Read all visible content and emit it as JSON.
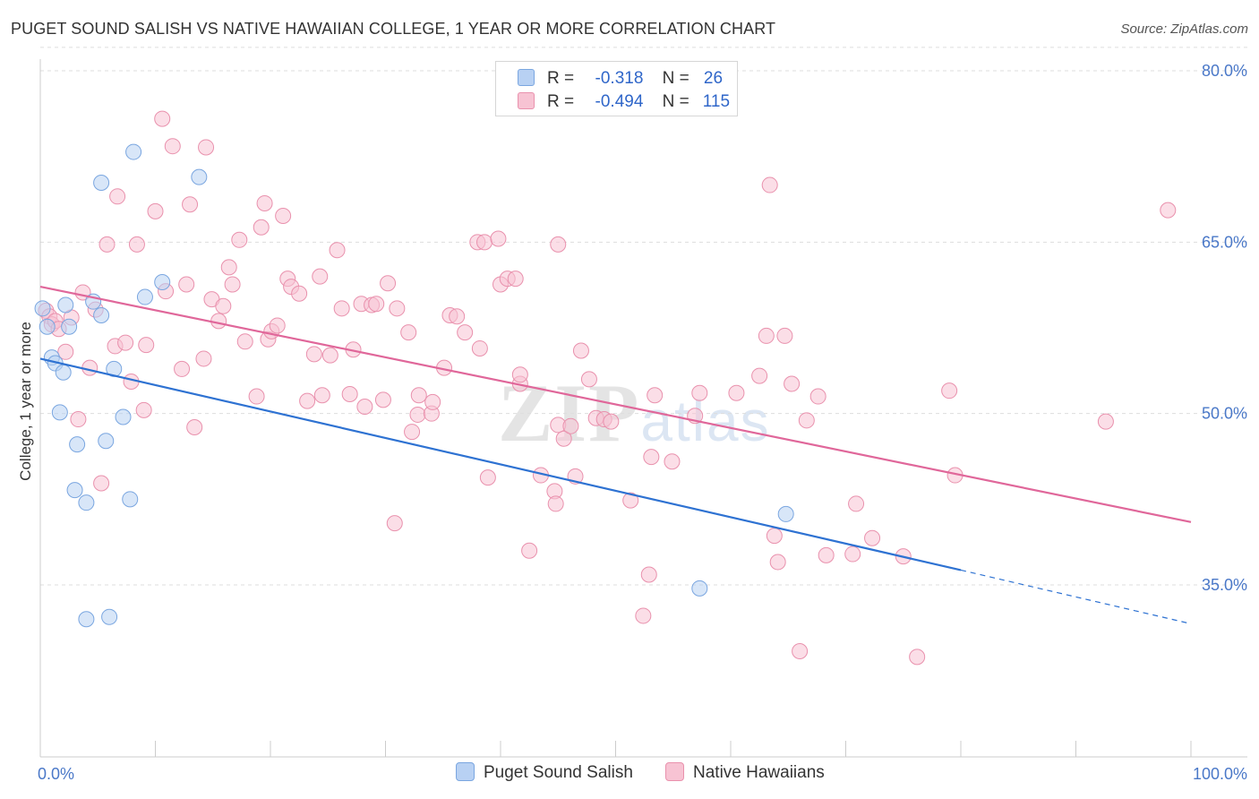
{
  "title": "PUGET SOUND SALISH VS NATIVE HAWAIIAN COLLEGE, 1 YEAR OR MORE CORRELATION CHART",
  "source": "Source: ZipAtlas.com",
  "watermark": "ZIPatlas",
  "colors": {
    "blue_fill": "#b8d1f3",
    "blue_stroke": "#7aa6e0",
    "blue_line": "#2e72d2",
    "pink_fill": "#f7c3d3",
    "pink_stroke": "#e991ad",
    "pink_line": "#e0679a",
    "grid": "#dddddd",
    "axis_text": "#4a78c8"
  },
  "legend": {
    "r_label": "R =",
    "n_label": "N =",
    "rows": [
      {
        "series": "Puget Sound Salish",
        "r": "-0.318",
        "n": "26"
      },
      {
        "series": "Native Hawaiians",
        "r": "-0.494",
        "n": "115"
      }
    ]
  },
  "chart_data": {
    "type": "scatter",
    "title": "PUGET SOUND SALISH VS NATIVE HAWAIIAN COLLEGE, 1 YEAR OR MORE CORRELATION CHART",
    "xlabel": "",
    "ylabel": "College, 1 year or more",
    "xlim": [
      0,
      100
    ],
    "ylim": [
      20,
      83
    ],
    "x_tick_labels": [
      "0.0%",
      "100.0%"
    ],
    "y_ticks": [
      35,
      50,
      65,
      80
    ],
    "y_tick_labels": [
      "35.0%",
      "50.0%",
      "65.0%",
      "80.0%"
    ],
    "grid": true,
    "legend_position": "bottom-center",
    "series": [
      {
        "name": "Puget Sound Salish",
        "color": "blue",
        "trend": {
          "x": [
            0,
            80
          ],
          "y": [
            54.8,
            36.3
          ],
          "dashed_to": [
            100,
            31.6
          ]
        },
        "points": [
          [
            0.2,
            59.2
          ],
          [
            0.6,
            57.6
          ],
          [
            1.0,
            54.9
          ],
          [
            1.3,
            54.4
          ],
          [
            1.7,
            50.1
          ],
          [
            2.0,
            53.6
          ],
          [
            2.2,
            59.5
          ],
          [
            2.5,
            57.6
          ],
          [
            3.0,
            43.3
          ],
          [
            3.2,
            47.3
          ],
          [
            4.0,
            42.2
          ],
          [
            4.0,
            32.0
          ],
          [
            5.3,
            58.6
          ],
          [
            5.3,
            70.2
          ],
          [
            5.7,
            47.6
          ],
          [
            6.0,
            32.2
          ],
          [
            6.4,
            53.9
          ],
          [
            4.6,
            59.8
          ],
          [
            7.2,
            49.7
          ],
          [
            7.8,
            42.5
          ],
          [
            8.1,
            72.9
          ],
          [
            9.1,
            60.2
          ],
          [
            10.6,
            61.5
          ],
          [
            13.8,
            70.7
          ],
          [
            57.3,
            34.7
          ],
          [
            64.8,
            41.2
          ]
        ]
      },
      {
        "name": "Native Hawaiians",
        "color": "pink",
        "trend": {
          "x": [
            0,
            100
          ],
          "y": [
            61.1,
            40.5
          ]
        },
        "points": [
          [
            0.5,
            59.0
          ],
          [
            0.8,
            58.5
          ],
          [
            1.0,
            57.8
          ],
          [
            1.3,
            58.1
          ],
          [
            1.6,
            57.4
          ],
          [
            2.2,
            55.4
          ],
          [
            2.7,
            58.4
          ],
          [
            3.3,
            49.5
          ],
          [
            3.7,
            60.6
          ],
          [
            4.3,
            54.0
          ],
          [
            4.8,
            59.1
          ],
          [
            5.3,
            43.9
          ],
          [
            5.8,
            64.8
          ],
          [
            6.5,
            55.9
          ],
          [
            6.7,
            69.0
          ],
          [
            7.4,
            56.2
          ],
          [
            7.9,
            52.8
          ],
          [
            8.4,
            64.8
          ],
          [
            9.0,
            50.3
          ],
          [
            9.2,
            56.0
          ],
          [
            10.0,
            67.7
          ],
          [
            10.6,
            75.8
          ],
          [
            10.9,
            60.7
          ],
          [
            11.5,
            73.4
          ],
          [
            12.3,
            53.9
          ],
          [
            12.7,
            61.3
          ],
          [
            13.0,
            68.3
          ],
          [
            13.4,
            48.8
          ],
          [
            14.2,
            54.8
          ],
          [
            14.4,
            73.3
          ],
          [
            14.9,
            60.0
          ],
          [
            15.5,
            58.1
          ],
          [
            15.9,
            59.4
          ],
          [
            16.4,
            62.8
          ],
          [
            16.7,
            61.3
          ],
          [
            17.3,
            65.2
          ],
          [
            17.8,
            56.3
          ],
          [
            18.8,
            51.5
          ],
          [
            19.2,
            66.3
          ],
          [
            19.5,
            68.4
          ],
          [
            19.8,
            56.5
          ],
          [
            20.1,
            57.2
          ],
          [
            20.6,
            57.7
          ],
          [
            21.1,
            67.3
          ],
          [
            21.5,
            61.8
          ],
          [
            21.8,
            61.1
          ],
          [
            22.5,
            60.5
          ],
          [
            23.2,
            51.1
          ],
          [
            23.8,
            55.2
          ],
          [
            24.3,
            62.0
          ],
          [
            24.5,
            51.6
          ],
          [
            25.2,
            55.1
          ],
          [
            25.8,
            64.3
          ],
          [
            26.2,
            59.2
          ],
          [
            26.9,
            51.7
          ],
          [
            27.2,
            55.6
          ],
          [
            27.9,
            59.6
          ],
          [
            28.2,
            50.6
          ],
          [
            28.8,
            59.5
          ],
          [
            29.2,
            59.6
          ],
          [
            29.8,
            51.2
          ],
          [
            30.2,
            61.4
          ],
          [
            30.8,
            40.4
          ],
          [
            31.0,
            59.2
          ],
          [
            32.0,
            57.1
          ],
          [
            32.3,
            48.4
          ],
          [
            32.8,
            49.9
          ],
          [
            32.9,
            51.6
          ],
          [
            34.0,
            50.0
          ],
          [
            34.1,
            51.0
          ],
          [
            35.1,
            54.0
          ],
          [
            35.6,
            58.6
          ],
          [
            36.2,
            58.5
          ],
          [
            36.9,
            57.1
          ],
          [
            38.0,
            65.0
          ],
          [
            38.2,
            55.7
          ],
          [
            38.6,
            65.0
          ],
          [
            38.9,
            44.4
          ],
          [
            39.8,
            65.3
          ],
          [
            40.0,
            61.3
          ],
          [
            40.6,
            61.8
          ],
          [
            41.3,
            61.8
          ],
          [
            41.7,
            52.6
          ],
          [
            41.7,
            53.4
          ],
          [
            42.5,
            38.0
          ],
          [
            43.5,
            44.6
          ],
          [
            44.7,
            43.2
          ],
          [
            44.8,
            42.1
          ],
          [
            45.0,
            64.8
          ],
          [
            45.0,
            49.0
          ],
          [
            45.5,
            47.8
          ],
          [
            46.1,
            48.9
          ],
          [
            46.5,
            44.5
          ],
          [
            47.0,
            55.5
          ],
          [
            47.7,
            53.0
          ],
          [
            48.3,
            49.6
          ],
          [
            49.0,
            49.5
          ],
          [
            49.6,
            49.3
          ],
          [
            51.3,
            42.4
          ],
          [
            52.4,
            32.3
          ],
          [
            52.9,
            35.9
          ],
          [
            53.1,
            46.2
          ],
          [
            53.4,
            51.6
          ],
          [
            54.9,
            45.8
          ],
          [
            56.9,
            49.8
          ],
          [
            57.3,
            51.8
          ],
          [
            60.5,
            51.8
          ],
          [
            62.5,
            53.3
          ],
          [
            63.1,
            56.8
          ],
          [
            63.4,
            70.0
          ],
          [
            63.8,
            39.3
          ],
          [
            64.1,
            37.0
          ],
          [
            64.7,
            56.8
          ],
          [
            65.3,
            52.6
          ],
          [
            66.0,
            29.2
          ],
          [
            66.6,
            49.4
          ],
          [
            67.6,
            51.5
          ],
          [
            68.3,
            37.6
          ],
          [
            70.6,
            37.7
          ],
          [
            70.9,
            42.1
          ],
          [
            72.3,
            39.1
          ],
          [
            75.0,
            37.5
          ],
          [
            76.2,
            28.7
          ],
          [
            79.0,
            52.0
          ],
          [
            79.5,
            44.6
          ],
          [
            92.6,
            49.3
          ],
          [
            98.0,
            67.8
          ]
        ]
      }
    ]
  }
}
